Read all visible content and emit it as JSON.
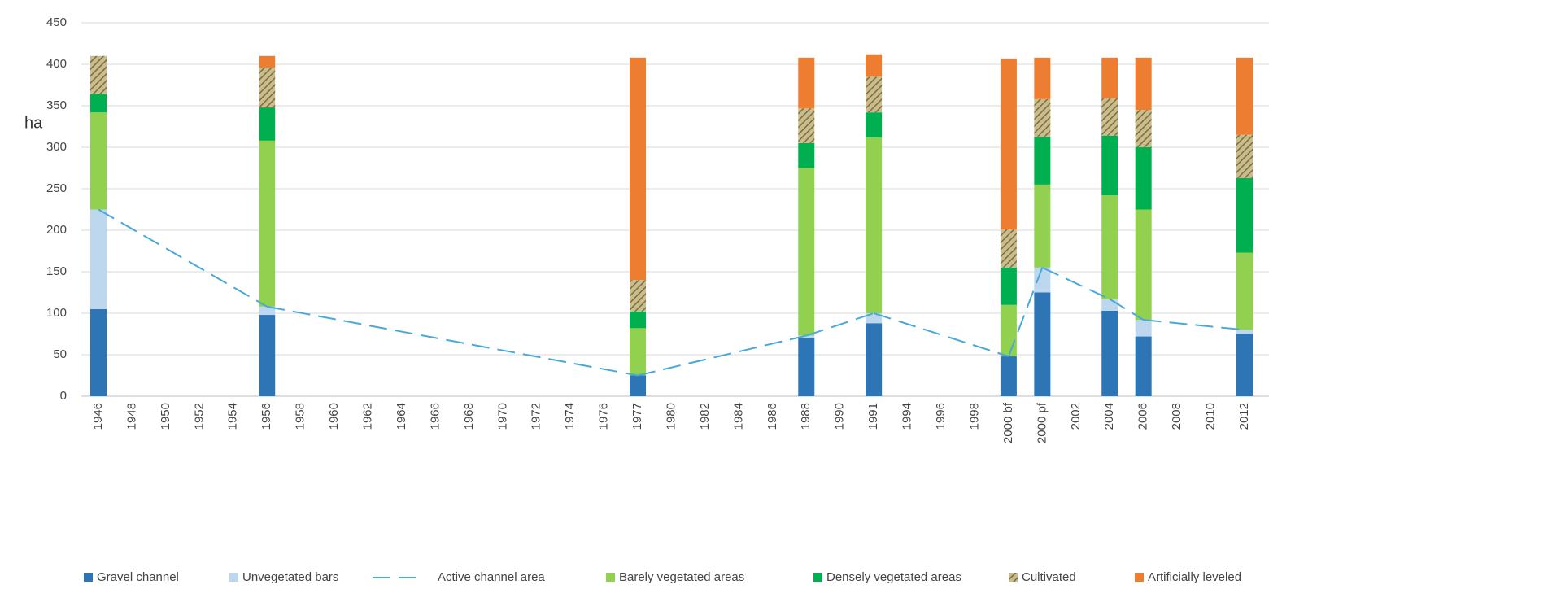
{
  "chart_data": {
    "type": "bar",
    "stacked": true,
    "y_label": "ha",
    "ylim": [
      0,
      450
    ],
    "yticks": [
      0,
      50,
      100,
      150,
      200,
      250,
      300,
      350,
      400,
      450
    ],
    "grid": true,
    "legend": "bottom",
    "span_gaps": true,
    "categories": [
      "1946",
      "1948",
      "1950",
      "1952",
      "1954",
      "1956",
      "1958",
      "1960",
      "1962",
      "1964",
      "1966",
      "1968",
      "1970",
      "1972",
      "1974",
      "1976",
      "1977",
      "1980",
      "1982",
      "1984",
      "1986",
      "1988",
      "1990",
      "1991",
      "1994",
      "1996",
      "1998",
      "2000 bf",
      "2000 pf",
      "2002",
      "2004",
      "2006",
      "2008",
      "2010",
      "2012"
    ],
    "series": [
      {
        "name": "Gravel channel",
        "color": "#2e75b6",
        "values": [
          105,
          null,
          null,
          null,
          null,
          98,
          null,
          null,
          null,
          null,
          null,
          null,
          null,
          null,
          null,
          null,
          25,
          null,
          null,
          null,
          null,
          70,
          null,
          88,
          null,
          null,
          null,
          48,
          125,
          null,
          103,
          72,
          null,
          null,
          75
        ]
      },
      {
        "name": "Unvegetated bars",
        "color": "#bdd7ee",
        "values": [
          120,
          null,
          null,
          null,
          null,
          10,
          null,
          null,
          null,
          null,
          null,
          null,
          null,
          null,
          null,
          null,
          0,
          null,
          null,
          null,
          null,
          3,
          null,
          12,
          null,
          null,
          null,
          0,
          30,
          null,
          14,
          20,
          null,
          null,
          5
        ]
      },
      {
        "name": "Active channel area",
        "type": "line",
        "dashed": true,
        "color": "#4aa8d8",
        "values": [
          225,
          null,
          null,
          null,
          null,
          108,
          null,
          null,
          null,
          null,
          null,
          null,
          null,
          null,
          null,
          null,
          25,
          null,
          null,
          null,
          null,
          73,
          null,
          100,
          null,
          null,
          null,
          48,
          155,
          null,
          117,
          92,
          null,
          null,
          80
        ]
      },
      {
        "name": "Barely vegetated areas",
        "color": "#92d050",
        "values": [
          117,
          null,
          null,
          null,
          null,
          200,
          null,
          null,
          null,
          null,
          null,
          null,
          null,
          null,
          null,
          null,
          57,
          null,
          null,
          null,
          null,
          202,
          null,
          212,
          null,
          null,
          null,
          62,
          100,
          null,
          125,
          133,
          null,
          null,
          93
        ]
      },
      {
        "name": "Densely vegetated areas",
        "color": "#00b050",
        "values": [
          22,
          null,
          null,
          null,
          null,
          40,
          null,
          null,
          null,
          null,
          null,
          null,
          null,
          null,
          null,
          null,
          20,
          null,
          null,
          null,
          null,
          30,
          null,
          30,
          null,
          null,
          null,
          45,
          58,
          null,
          72,
          75,
          null,
          null,
          90
        ]
      },
      {
        "name": "Cultivated",
        "color": "#b5a878",
        "hatched": true,
        "values": [
          46,
          null,
          null,
          null,
          null,
          48,
          null,
          null,
          null,
          null,
          null,
          null,
          null,
          null,
          null,
          null,
          38,
          null,
          null,
          null,
          null,
          42,
          null,
          43,
          null,
          null,
          null,
          46,
          45,
          null,
          45,
          45,
          null,
          null,
          52
        ]
      },
      {
        "name": "Artificially leveled",
        "color": "#ed7d31",
        "values": [
          0,
          null,
          null,
          null,
          null,
          14,
          null,
          null,
          null,
          null,
          null,
          null,
          null,
          null,
          null,
          null,
          268,
          null,
          null,
          null,
          null,
          61,
          null,
          27,
          null,
          null,
          null,
          206,
          50,
          null,
          49,
          63,
          null,
          null,
          93
        ]
      }
    ]
  }
}
